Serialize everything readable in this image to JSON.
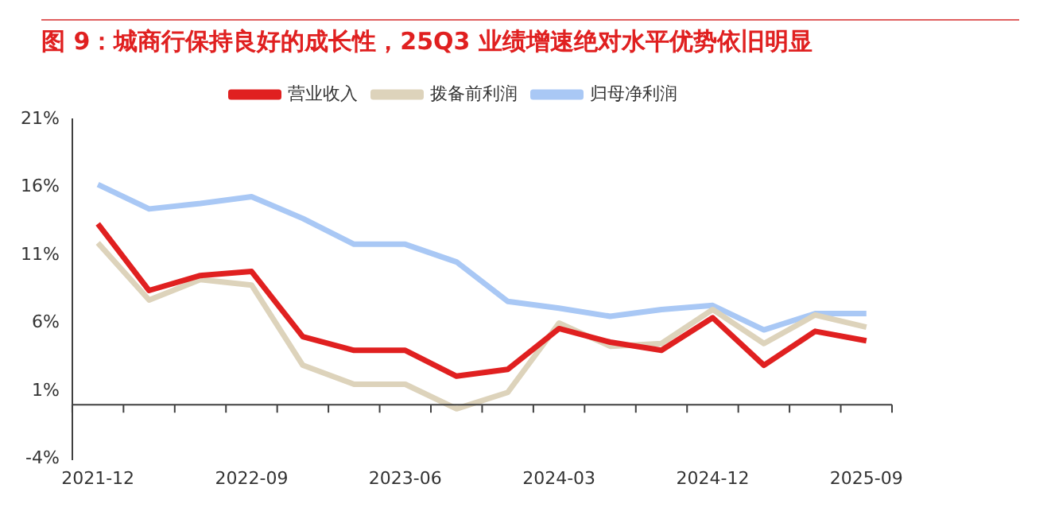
{
  "chart_data": {
    "type": "line",
    "title": "图 9：城商行保持良好的成长性，25Q3 业绩增速绝对水平优势依旧明显",
    "categories": [
      "2021-12",
      null,
      null,
      "2022-09",
      null,
      null,
      "2023-06",
      null,
      null,
      "2024-03",
      null,
      null,
      "2024-12",
      null,
      null,
      "2025-09"
    ],
    "series": [
      {
        "name": "营业收入",
        "color": "#e02020",
        "values": [
          13.3,
          8.4,
          9.5,
          9.8,
          5.0,
          4.0,
          4.0,
          2.1,
          2.6,
          5.6,
          4.6,
          4.0,
          6.4,
          2.9,
          5.4,
          4.7
        ]
      },
      {
        "name": "拨备前利润",
        "color": "#ddd3bb",
        "values": [
          11.9,
          7.7,
          9.2,
          8.8,
          2.9,
          1.5,
          1.5,
          -0.3,
          0.9,
          6.0,
          4.3,
          4.5,
          7.0,
          4.5,
          6.6,
          5.7
        ]
      },
      {
        "name": "归母净利润",
        "color": "#a9c8f5",
        "values": [
          16.2,
          14.4,
          14.8,
          15.3,
          13.7,
          11.8,
          11.8,
          10.5,
          7.6,
          7.1,
          6.5,
          7.0,
          7.3,
          5.5,
          6.7,
          6.7
        ]
      }
    ],
    "ylim": [
      -4,
      21
    ],
    "yticks": [
      {
        "value": -4,
        "label": "-4%"
      },
      {
        "value": 1,
        "label": "1%"
      },
      {
        "value": 6,
        "label": "6%"
      },
      {
        "value": 11,
        "label": "11%"
      },
      {
        "value": 16,
        "label": "16%"
      },
      {
        "value": 21,
        "label": "21%"
      }
    ],
    "grid": false,
    "legend": "top",
    "marker": "none",
    "line_style": "solid"
  }
}
